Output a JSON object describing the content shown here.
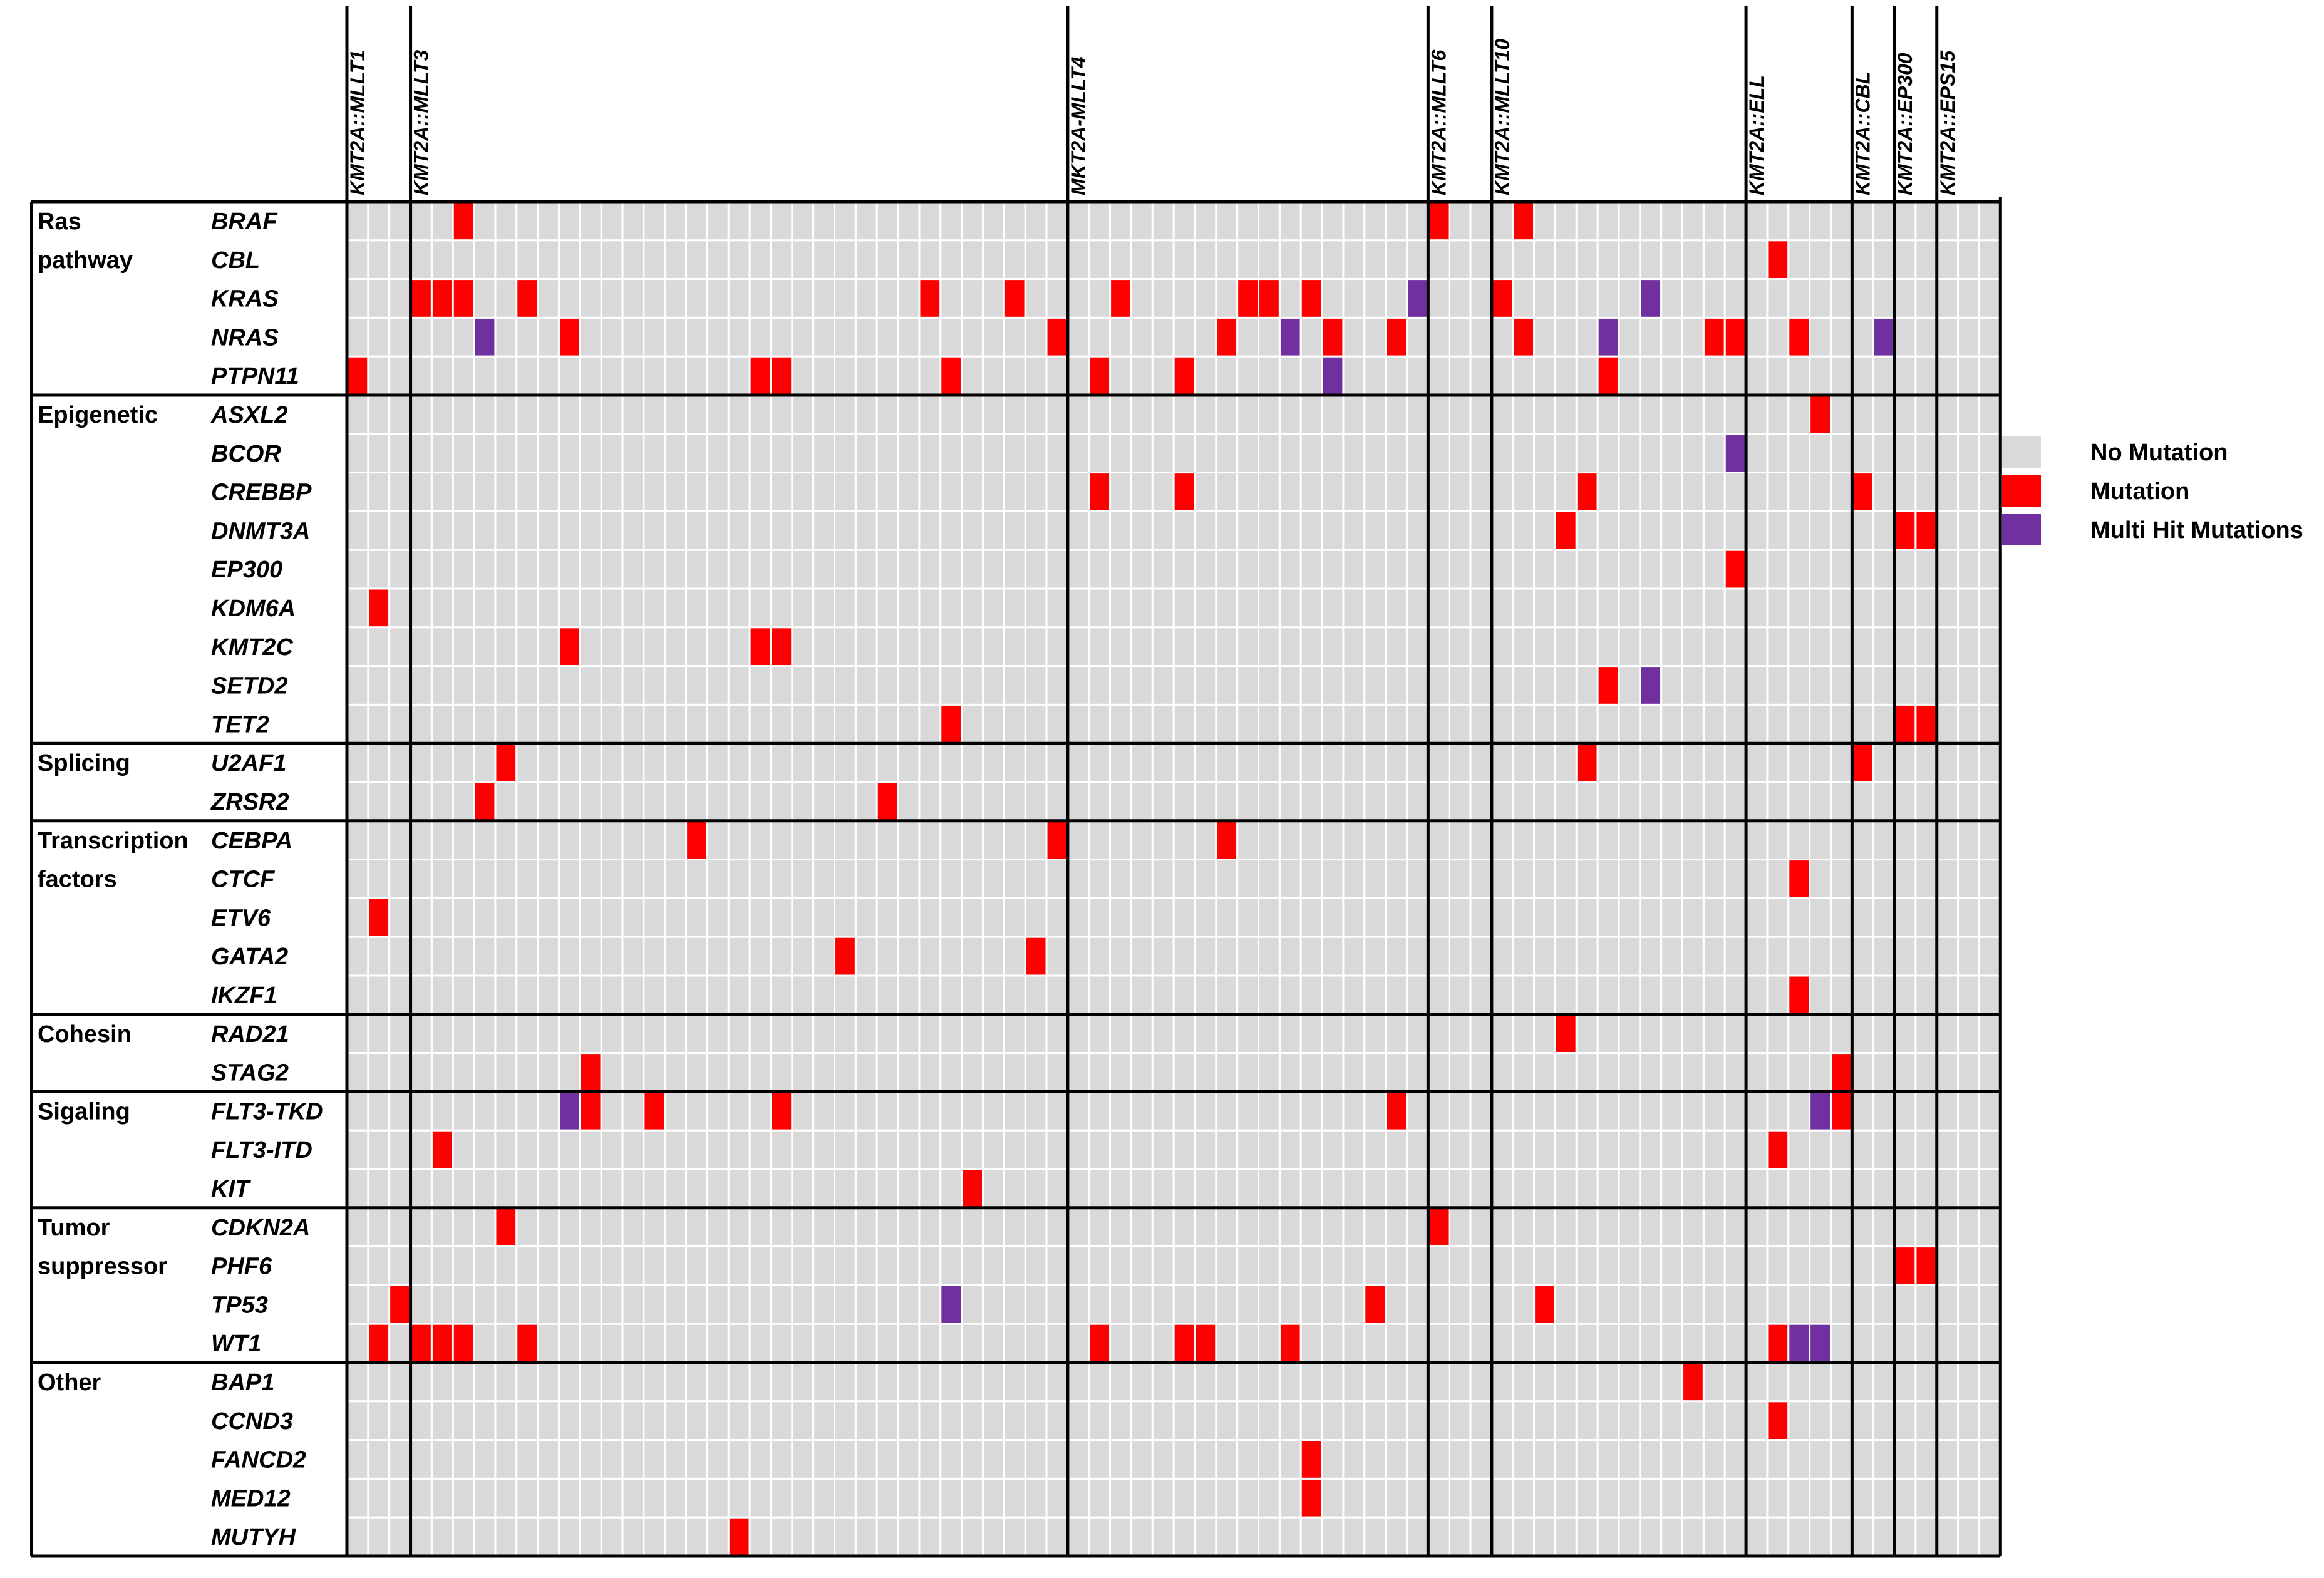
{
  "chart_data": {
    "type": "heatmap",
    "title": "",
    "n_samples": 78,
    "colors": {
      "none": "#d9d9d9",
      "mutation": "#ff0000",
      "multi": "#7030a0",
      "grid": "#ffffff",
      "border": "#000000"
    },
    "legend": [
      {
        "key": "none",
        "label": "No Mutation"
      },
      {
        "key": "mutation",
        "label": "Mutation"
      },
      {
        "key": "multi",
        "label": "Multi Hit Mutations"
      }
    ],
    "fusion_groups": [
      {
        "name": "KMT2A::MLLT1",
        "start": 0,
        "count": 3
      },
      {
        "name": "KMT2A::MLLT3",
        "start": 3,
        "count": 31
      },
      {
        "name": "MKT2A-MLLT4",
        "start": 34,
        "count": 17
      },
      {
        "name": "KMT2A::MLLT6",
        "start": 51,
        "count": 3
      },
      {
        "name": "KMT2A::MLLT10",
        "start": 54,
        "count": 12
      },
      {
        "name": "KMT2A::ELL",
        "start": 66,
        "count": 5
      },
      {
        "name": "KMT2A::CBL",
        "start": 71,
        "count": 2
      },
      {
        "name": "KMT2A::EP300",
        "start": 73,
        "count": 2
      },
      {
        "name": "KMT2A::EPS15",
        "start": 75,
        "count": 3
      }
    ],
    "pathway_groups": [
      {
        "name": "Ras pathway",
        "label_lines": [
          "Ras",
          "pathway"
        ],
        "start": 0,
        "count": 5
      },
      {
        "name": "Epigenetic",
        "label_lines": [
          "Epigenetic"
        ],
        "start": 5,
        "count": 9
      },
      {
        "name": "Splicing",
        "label_lines": [
          "Splicing"
        ],
        "start": 14,
        "count": 2
      },
      {
        "name": "Transcription factors",
        "label_lines": [
          "Transcription",
          "factors"
        ],
        "start": 16,
        "count": 5
      },
      {
        "name": "Cohesin",
        "label_lines": [
          "Cohesin"
        ],
        "start": 21,
        "count": 2
      },
      {
        "name": "Sigaling",
        "label_lines": [
          "Sigaling"
        ],
        "start": 23,
        "count": 3
      },
      {
        "name": "Tumor suppressor",
        "label_lines": [
          "Tumor",
          "suppressor"
        ],
        "start": 26,
        "count": 4
      },
      {
        "name": "Other",
        "label_lines": [
          "Other"
        ],
        "start": 30,
        "count": 5
      }
    ],
    "genes": [
      {
        "gene": "BRAF",
        "mutation": [
          5,
          51,
          55
        ],
        "multi": []
      },
      {
        "gene": "CBL",
        "mutation": [
          67
        ],
        "multi": []
      },
      {
        "gene": "KRAS",
        "mutation": [
          3,
          4,
          5,
          8,
          27,
          31,
          36,
          42,
          43,
          45,
          54
        ],
        "multi": [
          50,
          61
        ]
      },
      {
        "gene": "NRAS",
        "mutation": [
          10,
          33,
          41,
          46,
          49,
          55,
          64,
          65,
          68
        ],
        "multi": [
          6,
          44,
          59,
          72
        ]
      },
      {
        "gene": "PTPN11",
        "mutation": [
          0,
          19,
          20,
          28,
          35,
          39,
          59
        ],
        "multi": [
          46
        ]
      },
      {
        "gene": "ASXL2",
        "mutation": [
          69
        ],
        "multi": []
      },
      {
        "gene": "BCOR",
        "mutation": [],
        "multi": [
          65
        ]
      },
      {
        "gene": "CREBBP",
        "mutation": [
          35,
          39,
          58,
          71
        ],
        "multi": []
      },
      {
        "gene": "DNMT3A",
        "mutation": [
          57,
          73,
          74
        ],
        "multi": []
      },
      {
        "gene": "EP300",
        "mutation": [
          65
        ],
        "multi": []
      },
      {
        "gene": "KDM6A",
        "mutation": [
          1
        ],
        "multi": []
      },
      {
        "gene": "KMT2C",
        "mutation": [
          10,
          19,
          20
        ],
        "multi": []
      },
      {
        "gene": "SETD2",
        "mutation": [
          59
        ],
        "multi": [
          61
        ]
      },
      {
        "gene": "TET2",
        "mutation": [
          28,
          73,
          74
        ],
        "multi": []
      },
      {
        "gene": "U2AF1",
        "mutation": [
          7,
          58,
          71
        ],
        "multi": []
      },
      {
        "gene": "ZRSR2",
        "mutation": [
          6,
          25
        ],
        "multi": []
      },
      {
        "gene": "CEBPA",
        "mutation": [
          16,
          33,
          41
        ],
        "multi": []
      },
      {
        "gene": "CTCF",
        "mutation": [
          68
        ],
        "multi": []
      },
      {
        "gene": "ETV6",
        "mutation": [
          1
        ],
        "multi": []
      },
      {
        "gene": "GATA2",
        "mutation": [
          23,
          32
        ],
        "multi": []
      },
      {
        "gene": "IKZF1",
        "mutation": [
          68
        ],
        "multi": []
      },
      {
        "gene": "RAD21",
        "mutation": [
          57
        ],
        "multi": []
      },
      {
        "gene": "STAG2",
        "mutation": [
          11,
          70
        ],
        "multi": []
      },
      {
        "gene": "FLT3-TKD",
        "mutation": [
          11,
          14,
          20,
          49,
          70
        ],
        "multi": [
          10,
          69
        ]
      },
      {
        "gene": "FLT3-ITD",
        "mutation": [
          4,
          67
        ],
        "multi": []
      },
      {
        "gene": "KIT",
        "mutation": [
          29
        ],
        "multi": []
      },
      {
        "gene": "CDKN2A",
        "mutation": [
          7,
          51
        ],
        "multi": []
      },
      {
        "gene": "PHF6",
        "mutation": [
          73,
          74
        ],
        "multi": []
      },
      {
        "gene": "TP53",
        "mutation": [
          2,
          48,
          56
        ],
        "multi": [
          28
        ]
      },
      {
        "gene": "WT1",
        "mutation": [
          1,
          3,
          4,
          5,
          8,
          35,
          39,
          40,
          44,
          67
        ],
        "multi": [
          68,
          69
        ]
      },
      {
        "gene": "BAP1",
        "mutation": [
          63
        ],
        "multi": []
      },
      {
        "gene": "CCND3",
        "mutation": [
          67
        ],
        "multi": []
      },
      {
        "gene": "FANCD2",
        "mutation": [
          45
        ],
        "multi": []
      },
      {
        "gene": "MED12",
        "mutation": [
          45
        ],
        "multi": []
      },
      {
        "gene": "MUTYH",
        "mutation": [
          18
        ],
        "multi": []
      }
    ]
  }
}
